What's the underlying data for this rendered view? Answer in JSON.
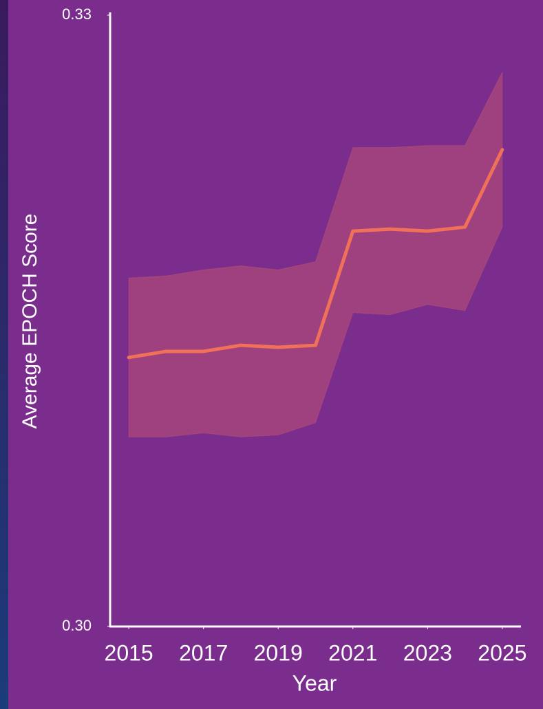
{
  "chart_data": {
    "type": "line",
    "x_label": "Year",
    "y_label": "Average EPOCH Score",
    "x": [
      2015,
      2016,
      2017,
      2018,
      2019,
      2020,
      2021,
      2022,
      2023,
      2024,
      2025
    ],
    "values": [
      0.3132,
      0.3135,
      0.3135,
      0.3138,
      0.3137,
      0.3138,
      0.3194,
      0.3195,
      0.3194,
      0.3196,
      0.3234
    ],
    "upper": [
      0.3171,
      0.3172,
      0.3175,
      0.3177,
      0.3175,
      0.3179,
      0.3235,
      0.3235,
      0.3236,
      0.3236,
      0.3272
    ],
    "lower": [
      0.3093,
      0.3093,
      0.3095,
      0.3093,
      0.3094,
      0.31,
      0.3154,
      0.3153,
      0.3158,
      0.3155,
      0.3196
    ],
    "color": "#f0705a",
    "band_color": "#f0705a",
    "xlim": [
      2014.5,
      2025.5
    ],
    "xticks": [
      2015,
      2017,
      2019,
      2021,
      2023,
      2025
    ],
    "ylim": [
      0.3,
      0.33
    ],
    "yticks": [
      {
        "value": 0.3,
        "label": "0.30"
      },
      0.33
    ],
    "grid": false
  }
}
